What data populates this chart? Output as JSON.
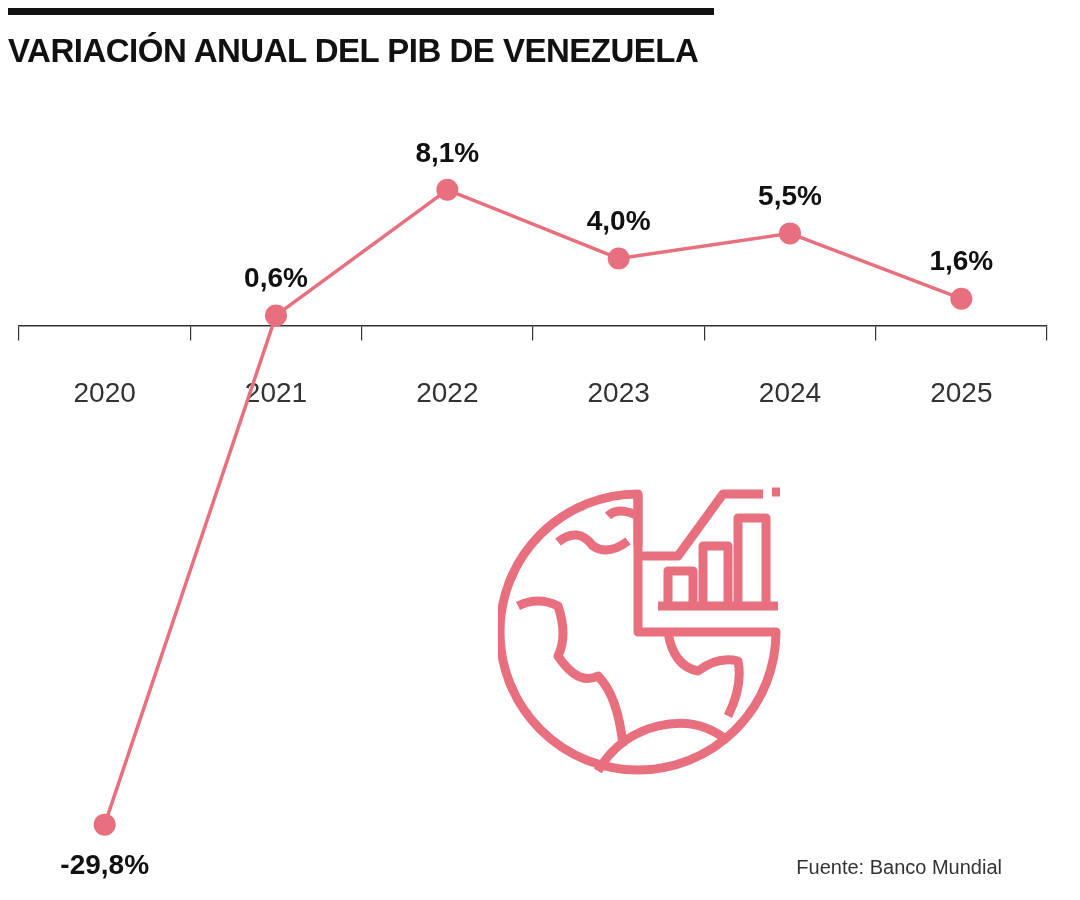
{
  "chart_data": {
    "type": "line",
    "title": "VARIACIÓN ANUAL DEL PIB DE VENEZUELA",
    "categories": [
      "2020",
      "2021",
      "2022",
      "2023",
      "2024",
      "2025"
    ],
    "values": [
      -29.8,
      0.6,
      8.1,
      4.0,
      5.5,
      1.6
    ],
    "value_labels": [
      "-29,8%",
      "0,6%",
      "8,1%",
      "4,0%",
      "5,5%",
      "1,6%"
    ],
    "color": "#e8707e",
    "marker": "circle",
    "line_style": "solid",
    "tick_labels": "x",
    "grid": false,
    "legend": false,
    "annotations": [
      "Fuente: Banco Mundial"
    ]
  }
}
